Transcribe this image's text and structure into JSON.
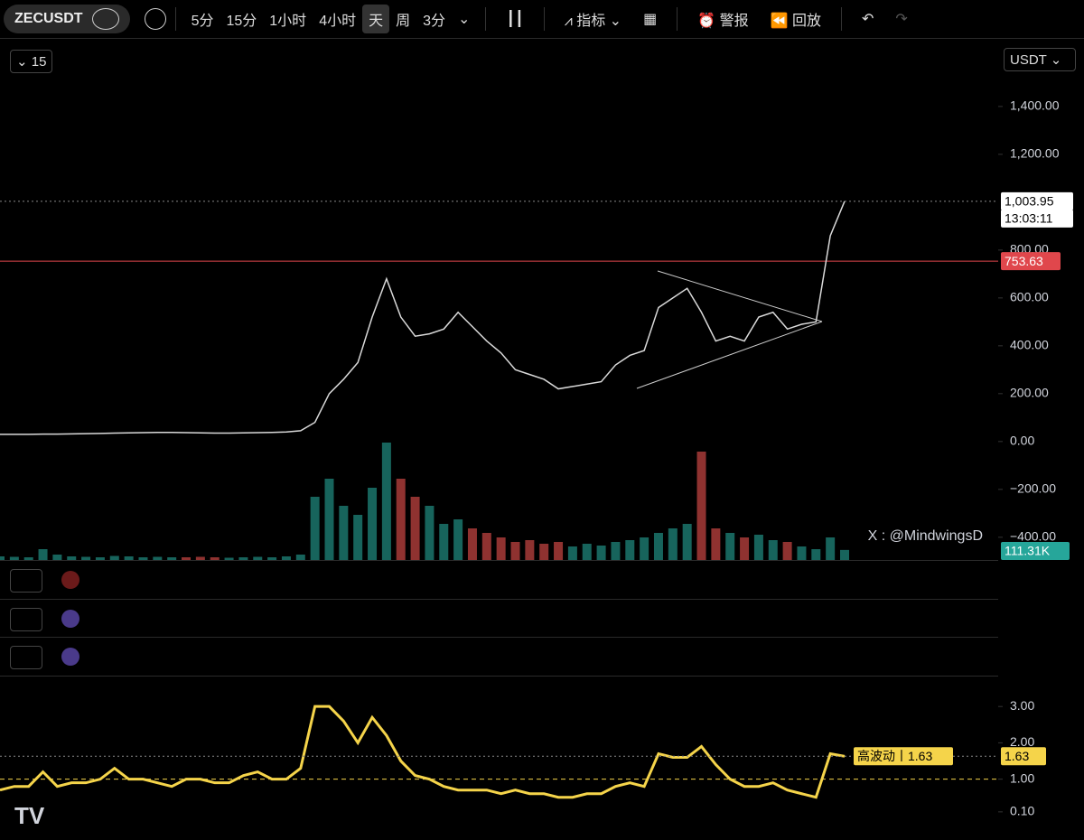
{
  "toolbar": {
    "symbol": "ZECUSDT",
    "intervals": [
      "5分",
      "15分",
      "1小时",
      "4小时",
      "天",
      "周",
      "3分"
    ],
    "indicators": "指标",
    "alert": "警报",
    "replay": "回放"
  },
  "interval_input": "15",
  "currency": "USDT",
  "watermark": "X : @MindwingsD",
  "chart_data": [
    {
      "type": "line",
      "color": "#d9d9d9",
      "values": [
        30,
        30,
        30,
        31,
        31,
        32,
        33,
        34,
        35,
        36,
        37,
        38,
        38,
        37,
        36,
        35,
        35,
        36,
        37,
        38,
        40,
        45,
        80,
        200,
        260,
        330,
        520,
        680,
        520,
        440,
        450,
        470,
        540,
        480,
        420,
        370,
        300,
        280,
        260,
        220,
        230,
        240,
        250,
        320,
        360,
        380,
        560,
        600,
        640,
        540,
        420,
        440,
        420,
        520,
        540,
        470,
        490,
        500,
        860,
        1003.95
      ],
      "ylim": [
        -495,
        1675
      ],
      "yticks": [
        {
          "value": 1400,
          "label": "1,400.00"
        },
        {
          "value": 1200,
          "label": "1,200.00"
        },
        {
          "value": 800,
          "label": "800.00"
        },
        {
          "value": 600,
          "label": "600.00"
        },
        {
          "value": 400,
          "label": "400.00"
        },
        {
          "value": 200,
          "label": "200.00"
        },
        {
          "value": 0,
          "label": "0.00"
        },
        {
          "value": -200,
          "label": "−200.00"
        },
        {
          "value": -400,
          "label": "−400.00"
        }
      ],
      "level": 753.63,
      "level_color": "#e0474c",
      "last_value_label": "1,003.95",
      "countdown": "13:03:11"
    },
    {
      "type": "bar",
      "colors": [
        "#26a69a",
        "#ef5350"
      ],
      "values": [
        40,
        35,
        30,
        120,
        60,
        40,
        35,
        30,
        45,
        40,
        30,
        35,
        30,
        30,
        35,
        30,
        25,
        30,
        35,
        30,
        40,
        60,
        700,
        900,
        600,
        500,
        800,
        1300,
        900,
        700,
        600,
        400,
        450,
        350,
        300,
        250,
        200,
        220,
        180,
        200,
        150,
        180,
        160,
        200,
        220,
        250,
        300,
        350,
        400,
        1200,
        350,
        300,
        250,
        280,
        220,
        200,
        150,
        120,
        250,
        111.31
      ],
      "ylim": [
        0,
        1600
      ],
      "last_value_label": "111.31K"
    },
    {
      "type": "line",
      "color": "#f5d44a",
      "values": [
        0.7,
        0.8,
        0.8,
        1.2,
        0.8,
        0.9,
        0.9,
        1.0,
        1.3,
        1.0,
        1.0,
        0.9,
        0.8,
        1.0,
        1.0,
        0.9,
        0.9,
        1.1,
        1.2,
        1.0,
        1.0,
        1.3,
        3.0,
        3.0,
        2.6,
        2.0,
        2.7,
        2.2,
        1.5,
        1.1,
        1.0,
        0.8,
        0.7,
        0.7,
        0.7,
        0.6,
        0.7,
        0.6,
        0.6,
        0.5,
        0.5,
        0.6,
        0.6,
        0.8,
        0.9,
        0.8,
        1.7,
        1.6,
        1.6,
        1.9,
        1.4,
        1.0,
        0.8,
        0.8,
        0.9,
        0.7,
        0.6,
        0.5,
        1.7,
        1.63
      ],
      "ylim": [
        -0.55,
        3.8
      ],
      "yticks": [
        {
          "value": 3,
          "label": "3.00"
        },
        {
          "value": 2,
          "label": "2.00"
        },
        {
          "value": 1,
          "label": "1.00"
        },
        {
          "value": 0.1,
          "label": "0.10"
        }
      ],
      "reference": 1,
      "status_label": "高波动丨1.63",
      "last_value_label": "1.63"
    }
  ]
}
